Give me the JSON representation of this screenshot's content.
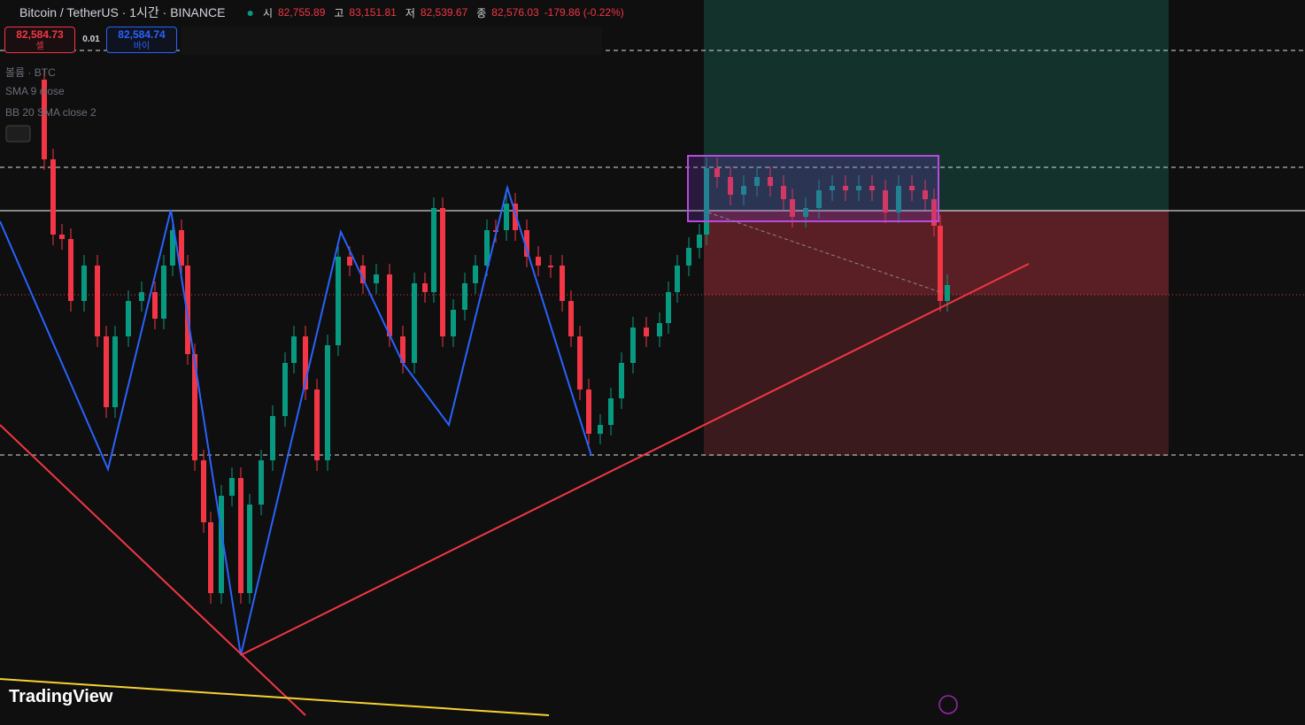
{
  "header": {
    "symbol": "Bitcoin / TetherUS · 1시간 · BINANCE",
    "ohlc": [
      {
        "label": "시",
        "value": "82,755.89"
      },
      {
        "label": "고",
        "value": "83,151.81"
      },
      {
        "label": "저",
        "value": "82,539.67"
      },
      {
        "label": "종",
        "value": "82,576.03"
      }
    ],
    "change": "-179.86 (-0.22%)"
  },
  "trade_panel": {
    "sell_price": "82,584.73",
    "sell_label": "셀",
    "quantity": "0.01",
    "buy_price": "82,584.74",
    "buy_label": "바이"
  },
  "indicators": [
    "볼륨 · BTC",
    "SMA 9 close",
    "BB 20 SMA close 2"
  ],
  "logo": "TradingView"
}
